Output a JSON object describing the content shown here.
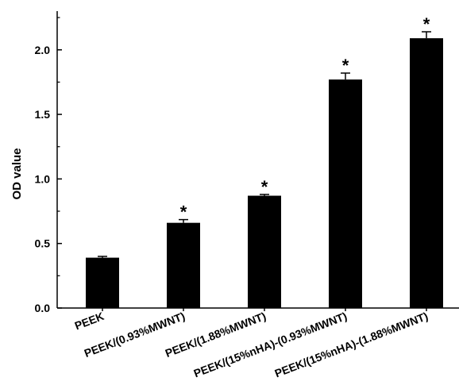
{
  "chart_data": {
    "type": "bar",
    "title": "",
    "xlabel": "",
    "ylabel": "OD value",
    "ylim": [
      0,
      2.3
    ],
    "yticks": [
      "0.0",
      "0.5",
      "1.0",
      "1.5",
      "2.0"
    ],
    "grid": false,
    "legend": "none",
    "categories": [
      "PEEK",
      "PEEK/(0.93%MWNT)",
      "PEEK/(1.88%MWNT)",
      "PEEK/(15%nHA)-(0.93%MWNT)",
      "PEEK/(15%nHA)-(1.88%MWNT)"
    ],
    "values": [
      0.39,
      0.66,
      0.87,
      1.77,
      2.09
    ],
    "errors": [
      0.01,
      0.025,
      0.01,
      0.05,
      0.05
    ],
    "significance": [
      "",
      "*",
      "*",
      "*",
      "*"
    ],
    "colors": {
      "bar": "#000000",
      "axis": "#000000"
    }
  }
}
